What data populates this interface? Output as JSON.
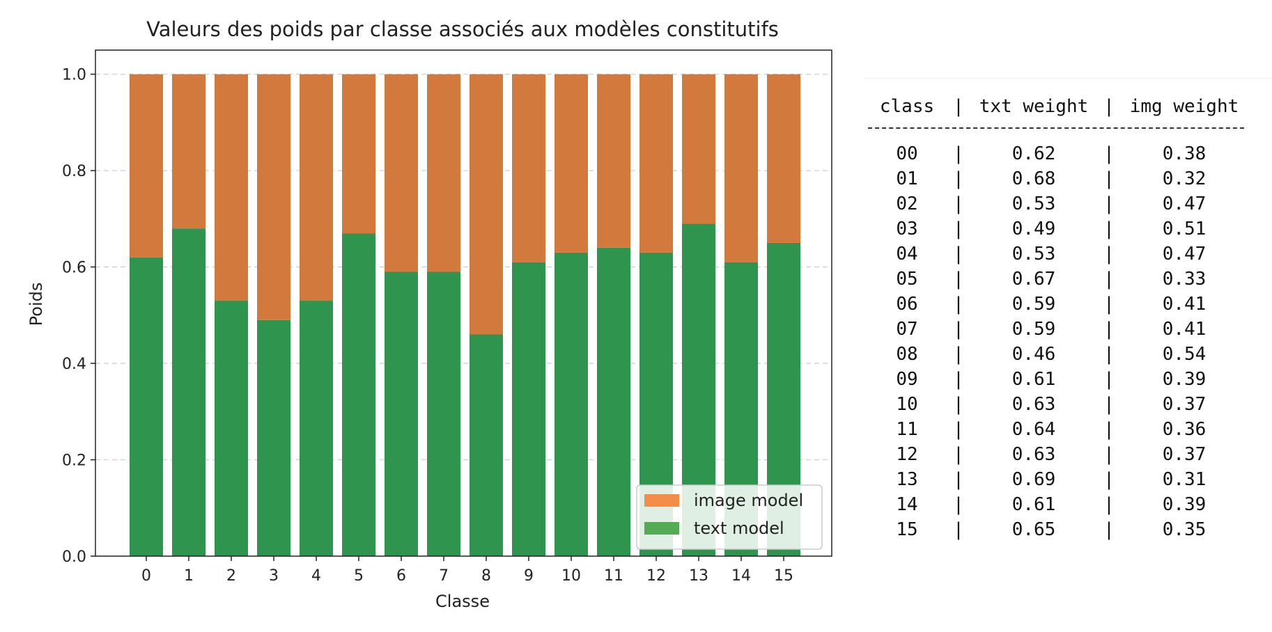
{
  "chart_data": {
    "type": "bar",
    "stacked": true,
    "title": "Valeurs des poids par classe associés aux modèles constitutifs",
    "xlabel": "Classe",
    "ylabel": "Poids",
    "ylim": [
      0,
      1.05
    ],
    "yticks": [
      "0.0",
      "0.2",
      "0.4",
      "0.6",
      "0.8",
      "1.0"
    ],
    "categories": [
      "0",
      "1",
      "2",
      "3",
      "4",
      "5",
      "6",
      "7",
      "8",
      "9",
      "10",
      "11",
      "12",
      "13",
      "14",
      "15"
    ],
    "series": [
      {
        "name": "text model",
        "color": "#2e944e",
        "legend_color": "#55aa55",
        "values": [
          0.62,
          0.68,
          0.53,
          0.49,
          0.53,
          0.67,
          0.59,
          0.59,
          0.46,
          0.61,
          0.63,
          0.64,
          0.63,
          0.69,
          0.61,
          0.65
        ]
      },
      {
        "name": "image model",
        "color": "#d27a3e",
        "legend_color": "#f28e4a",
        "values": [
          0.38,
          0.32,
          0.47,
          0.51,
          0.47,
          0.33,
          0.41,
          0.41,
          0.54,
          0.39,
          0.37,
          0.36,
          0.37,
          0.31,
          0.39,
          0.35
        ]
      }
    ],
    "grid": "y-dashed",
    "legend_position": "lower-right"
  },
  "table": {
    "headers": [
      "class",
      "txt weight",
      "img weight"
    ],
    "rows": [
      [
        "00",
        "0.62",
        "0.38"
      ],
      [
        "01",
        "0.68",
        "0.32"
      ],
      [
        "02",
        "0.53",
        "0.47"
      ],
      [
        "03",
        "0.49",
        "0.51"
      ],
      [
        "04",
        "0.53",
        "0.47"
      ],
      [
        "05",
        "0.67",
        "0.33"
      ],
      [
        "06",
        "0.59",
        "0.41"
      ],
      [
        "07",
        "0.59",
        "0.41"
      ],
      [
        "08",
        "0.46",
        "0.54"
      ],
      [
        "09",
        "0.61",
        "0.39"
      ],
      [
        "10",
        "0.63",
        "0.37"
      ],
      [
        "11",
        "0.64",
        "0.36"
      ],
      [
        "12",
        "0.63",
        "0.37"
      ],
      [
        "13",
        "0.69",
        "0.31"
      ],
      [
        "14",
        "0.61",
        "0.39"
      ],
      [
        "15",
        "0.65",
        "0.35"
      ]
    ]
  }
}
